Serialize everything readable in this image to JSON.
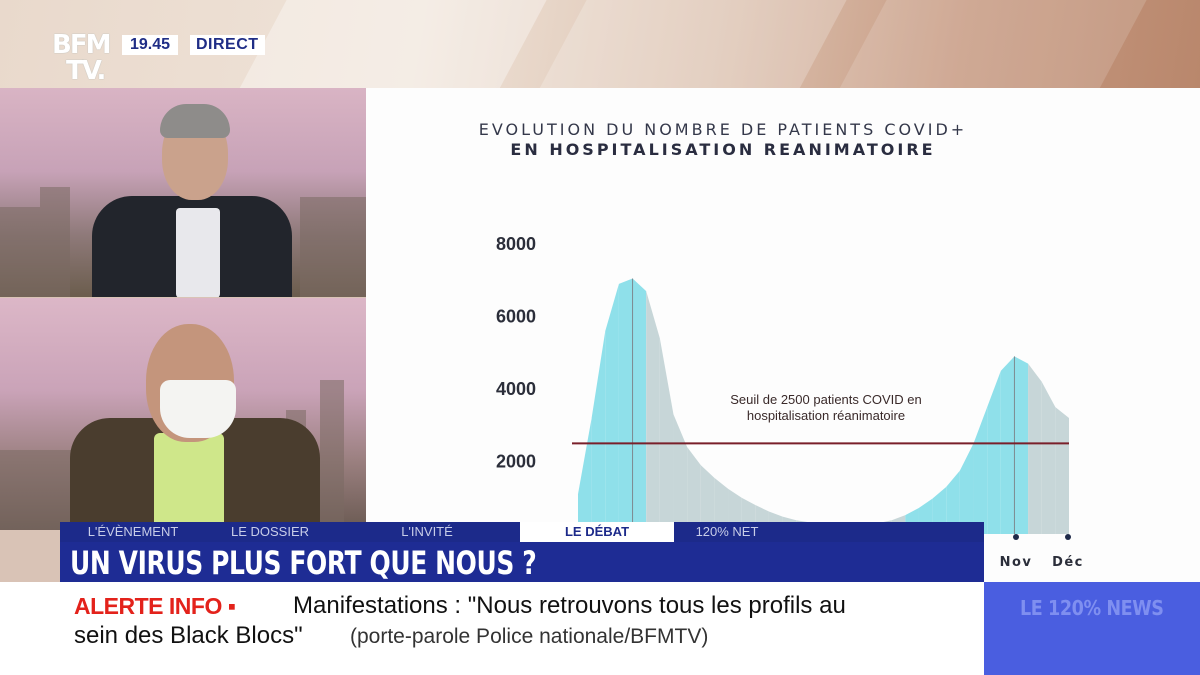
{
  "channel": {
    "logo_line1": "BFM",
    "logo_line2": "TV.",
    "time": "19.45",
    "live_label": "DIRECT"
  },
  "program": {
    "tabs": [
      {
        "label": "L'ÉVÈNEMENT",
        "active": false
      },
      {
        "label": "LE DOSSIER",
        "active": false
      },
      {
        "label": "L'INVITÉ",
        "active": false
      },
      {
        "label": "LE DÉBAT",
        "active": true
      },
      {
        "label": "120% NET",
        "active": false
      }
    ],
    "headline": "UN VIRUS PLUS FORT QUE NOUS ?"
  },
  "ticker": {
    "alert_label": "ALERTE INFO",
    "alert_separator": "▪",
    "text_line1": "Manifestations : \"Nous retrouvons tous les profils au",
    "text_line2": "sein des Black Blocs\"",
    "source": "(porte-parole Police nationale/BFMTV)",
    "side_label": "LE 120% NEWS"
  },
  "colors": {
    "brand_blue": "#1e2c94",
    "alert_red": "#e3221b",
    "area_cyan": "#8fe0ea",
    "area_grey": "#c7d6d8",
    "threshold": "#7a1f2a"
  },
  "chart_data": {
    "type": "area",
    "title": "EVOLUTION DU NOMBRE DE PATIENTS COVID+",
    "subtitle": "EN HOSPITALISATION REANIMATOIRE",
    "yticks": [
      2000,
      4000,
      6000,
      8000
    ],
    "ylim": [
      0,
      8000
    ],
    "xlabels_visible": [
      "Nov",
      "Déc"
    ],
    "series": [
      {
        "values": [
          1100,
          3200,
          5600,
          6900,
          7050,
          6700,
          5400,
          3300,
          2400,
          1900,
          1550,
          1250,
          1000,
          800,
          620,
          480,
          380,
          320,
          290,
          270,
          250,
          260,
          300,
          380,
          520,
          720,
          980,
          1300,
          1750,
          2500,
          3500,
          4500,
          4900,
          4700,
          4200,
          3500,
          3200
        ]
      }
    ],
    "threshold": {
      "value": 2500,
      "label_line1": "Seuil de 2500 patients COVID en",
      "label_line2": "hospitalisation réanimatoire"
    }
  }
}
